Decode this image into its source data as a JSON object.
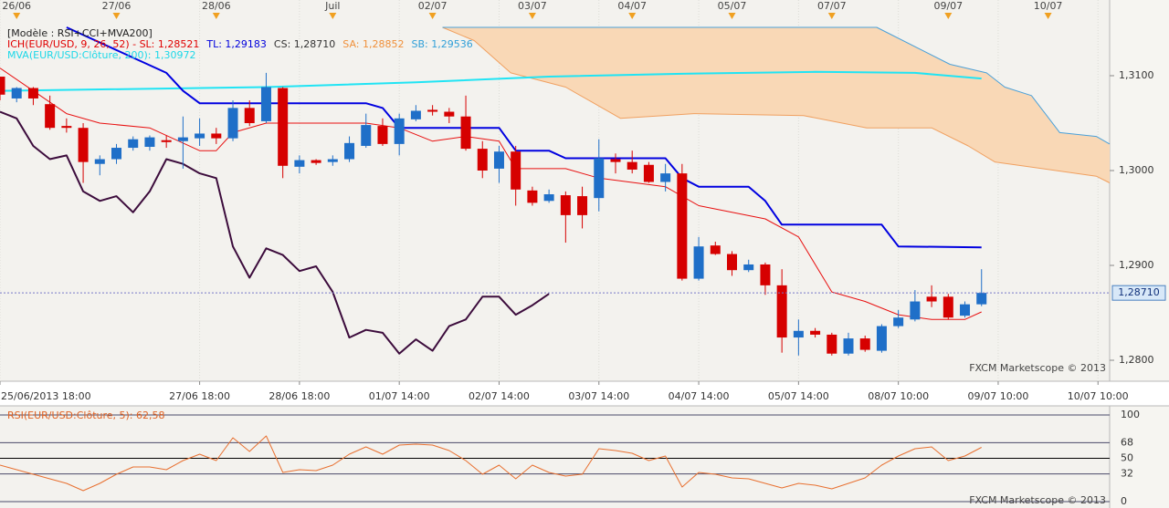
{
  "chart_data": [
    {
      "type": "candlestick",
      "header": [
        [
          {
            "text": "[Modèle : RSI+CCI+MVA200]",
            "color": "#222222"
          }
        ],
        [
          {
            "text": "ICH(EUR/USD, 9, 26, 52) -  SL: 1,28521",
            "color": "#e00000"
          },
          {
            "text": "TL: 1,29183",
            "color": "#0000dd"
          },
          {
            "text": "CS: 1,28710",
            "color": "#333333"
          },
          {
            "text": "SA: 1,28852",
            "color": "#f0903a"
          },
          {
            "text": "SB: 1,29536",
            "color": "#2f9fd8"
          }
        ],
        [
          {
            "text": "MVA(EUR/USD:Clôture, 200): 1,30972",
            "color": "#1cd8e8"
          }
        ]
      ],
      "watermark": "FXCM Marketscope © 2013",
      "xlim": [
        0,
        66.7
      ],
      "xticks": [
        {
          "value": 0,
          "label": "25/06/2013 18:00"
        },
        {
          "value": 12,
          "label": "27/06 18:00"
        },
        {
          "value": 18,
          "label": "28/06 18:00"
        },
        {
          "value": 24,
          "label": "01/07 14:00"
        },
        {
          "value": 30,
          "label": "02/07 14:00"
        },
        {
          "value": 36,
          "label": "03/07 14:00"
        },
        {
          "value": 42,
          "label": "04/07 14:00"
        },
        {
          "value": 48,
          "label": "05/07 14:00"
        },
        {
          "value": 54,
          "label": "08/07 10:00"
        },
        {
          "value": 60,
          "label": "09/07 10:00"
        },
        {
          "value": 66,
          "label": "10/07 10:00"
        }
      ],
      "x2ticks": [
        {
          "value": 1,
          "label": "26/06"
        },
        {
          "value": 7,
          "label": "27/06"
        },
        {
          "value": 13,
          "label": "28/06"
        },
        {
          "value": 20,
          "label": "Juil"
        },
        {
          "value": 26,
          "label": "02/07"
        },
        {
          "value": 32,
          "label": "03/07"
        },
        {
          "value": 38,
          "label": "04/07"
        },
        {
          "value": 44,
          "label": "05/07"
        },
        {
          "value": 50,
          "label": "07/07"
        },
        {
          "value": 57,
          "label": "09/07"
        },
        {
          "value": 63,
          "label": "10/07"
        }
      ],
      "ylim": [
        1.27779,
        1.31798
      ],
      "yticks": [
        {
          "value": 1.31,
          "label": "1,3100"
        },
        {
          "value": 1.3,
          "label": "1,3000"
        },
        {
          "value": 1.29,
          "label": "1,2900"
        },
        {
          "value": 1.28,
          "label": "1,2800"
        }
      ],
      "grid": true,
      "up_color": "#1f6fc8",
      "down_color": "#d60000",
      "last_price": {
        "value": 1.2871,
        "label": "1,28710"
      },
      "x": [
        0,
        1,
        2,
        3,
        4,
        5,
        6,
        7,
        8,
        9,
        10,
        11,
        12,
        13,
        14,
        15,
        16,
        17,
        18,
        19,
        20,
        21,
        22,
        23,
        24,
        25,
        26,
        27,
        28,
        29,
        30,
        31,
        32,
        33,
        34,
        35,
        36,
        37,
        38,
        39,
        40,
        41,
        42,
        43,
        44,
        45,
        46,
        47,
        48,
        49,
        50,
        51,
        52,
        53,
        54,
        55,
        56,
        57,
        58,
        59
      ],
      "open": [
        1.3099,
        1.3076,
        1.3087,
        1.307,
        1.3047,
        1.3045,
        1.3007,
        1.3012,
        1.3024,
        1.3025,
        1.3032,
        1.3031,
        1.3034,
        1.3039,
        1.3034,
        1.3066,
        1.3052,
        1.3087,
        1.3004,
        1.3011,
        1.3009,
        1.3012,
        1.3026,
        1.3047,
        1.3028,
        1.3054,
        1.3064,
        1.3062,
        1.3057,
        1.3023,
        1.3002,
        1.302,
        1.2979,
        1.2968,
        1.2974,
        1.2973,
        1.2971,
        1.3012,
        1.3009,
        1.3006,
        1.2988,
        1.2997,
        1.2886,
        1.2921,
        1.2912,
        1.2895,
        1.2901,
        1.2879,
        1.2824,
        1.2831,
        1.2827,
        1.2807,
        1.2823,
        1.281,
        1.2836,
        1.2843,
        1.2867,
        1.2867,
        1.2847,
        1.2859
      ],
      "high": [
        1.3099,
        1.3088,
        1.3088,
        1.3079,
        1.3055,
        1.305,
        1.3016,
        1.3028,
        1.3036,
        1.3037,
        1.3037,
        1.3057,
        1.3055,
        1.3045,
        1.3074,
        1.3074,
        1.3103,
        1.3088,
        1.3016,
        1.3012,
        1.3016,
        1.3036,
        1.306,
        1.3055,
        1.306,
        1.3069,
        1.3069,
        1.3066,
        1.3079,
        1.3031,
        1.3026,
        1.3026,
        1.2983,
        1.298,
        1.2978,
        1.2983,
        1.3033,
        1.3018,
        1.3021,
        1.3009,
        1.3007,
        1.3007,
        1.293,
        1.2925,
        1.2915,
        1.2906,
        1.2903,
        1.2896,
        1.2843,
        1.2834,
        1.2829,
        1.2829,
        1.2826,
        1.2838,
        1.2853,
        1.2874,
        1.2879,
        1.287,
        1.2862,
        1.2896
      ],
      "low": [
        1.3074,
        1.3072,
        1.3069,
        1.3043,
        1.304,
        1.2987,
        1.2995,
        1.3007,
        1.3021,
        1.3021,
        1.3024,
        1.3002,
        1.3026,
        1.3028,
        1.3031,
        1.3047,
        1.305,
        1.2992,
        1.2997,
        1.3006,
        1.3005,
        1.3009,
        1.3024,
        1.3026,
        1.3016,
        1.3052,
        1.3058,
        1.305,
        1.3021,
        1.2992,
        1.2987,
        1.2963,
        1.2963,
        1.2966,
        1.2924,
        1.2939,
        1.2957,
        1.2997,
        1.2997,
        1.2987,
        1.2978,
        1.2884,
        1.2884,
        1.2911,
        1.2889,
        1.2893,
        1.2869,
        1.2808,
        1.2805,
        1.2824,
        1.2805,
        1.2805,
        1.2809,
        1.2808,
        1.2834,
        1.2841,
        1.2856,
        1.2843,
        1.2845,
        1.2857
      ],
      "close": [
        1.308,
        1.3087,
        1.3076,
        1.3045,
        1.3045,
        1.3009,
        1.3012,
        1.3024,
        1.3033,
        1.3035,
        1.303,
        1.3035,
        1.3039,
        1.3034,
        1.3066,
        1.305,
        1.3088,
        1.3005,
        1.3011,
        1.3008,
        1.3012,
        1.3029,
        1.3048,
        1.3028,
        1.3055,
        1.3063,
        1.3062,
        1.3057,
        1.3023,
        1.3,
        1.302,
        1.298,
        1.2966,
        1.2975,
        1.2953,
        1.2953,
        1.3013,
        1.3009,
        1.3001,
        1.2988,
        1.2997,
        1.2886,
        1.292,
        1.2912,
        1.2895,
        1.2901,
        1.2879,
        1.2824,
        1.2831,
        1.2827,
        1.2807,
        1.2823,
        1.2811,
        1.2836,
        1.2845,
        1.2862,
        1.2862,
        1.2845,
        1.2859,
        1.2871
      ],
      "cloud_fill": "#f9d8b6",
      "cloud": [
        {
          "color": "#f0a060",
          "x": [
            26.6,
            28.5,
            30.7,
            34,
            37.3,
            41.7,
            48.3,
            52.1,
            56,
            58.2,
            59.8,
            65.9,
            66.7
          ],
          "values": [
            1.3151,
            1.3137,
            1.3103,
            1.3088,
            1.3055,
            1.306,
            1.3058,
            1.3045,
            1.3045,
            1.3026,
            1.3009,
            1.2994,
            1.2987
          ]
        },
        {
          "color": "#4aa0d8",
          "x": [
            26.6,
            52.7,
            57.1,
            59.3,
            60.4,
            62,
            63.7,
            65.9,
            66.7
          ],
          "values": [
            1.3151,
            1.3151,
            1.3112,
            1.3103,
            1.3088,
            1.3079,
            1.304,
            1.3036,
            1.3028
          ]
        }
      ],
      "series": [
        {
          "color": "#20e4f4",
          "width": 2,
          "x": [
            0,
            16,
            25,
            33,
            41,
            49,
            55,
            59
          ],
          "values": [
            1.3084,
            1.3088,
            1.3093,
            1.3099,
            1.3102,
            1.3104,
            1.3103,
            1.3097
          ]
        },
        {
          "color": "#e81010",
          "width": 1,
          "x": [
            0,
            2,
            4,
            6,
            9,
            12,
            13,
            14,
            16,
            22,
            24,
            26,
            28,
            30,
            31,
            34,
            36,
            40,
            42,
            46,
            48,
            50,
            52,
            54,
            56,
            58,
            59
          ],
          "values": [
            1.3108,
            1.3084,
            1.306,
            1.305,
            1.3045,
            1.3021,
            1.3021,
            1.304,
            1.305,
            1.305,
            1.3045,
            1.3031,
            1.3036,
            1.3031,
            1.3002,
            1.3002,
            1.2992,
            1.2983,
            1.2963,
            1.2949,
            1.293,
            1.2872,
            1.2862,
            1.2848,
            1.2843,
            1.2843,
            1.2851
          ]
        },
        {
          "color": "#0000e0",
          "width": 2,
          "x": [
            4,
            10,
            11,
            12,
            22,
            23,
            24,
            30,
            31,
            33,
            34,
            40,
            41,
            42,
            45,
            46,
            47,
            53,
            54,
            59
          ],
          "values": [
            1.3151,
            1.3103,
            1.3084,
            1.3071,
            1.3071,
            1.3066,
            1.3045,
            1.3045,
            1.3021,
            1.3021,
            1.3013,
            1.3013,
            1.2992,
            1.2983,
            1.2983,
            1.2968,
            1.2943,
            1.2943,
            1.292,
            1.2919
          ]
        },
        {
          "color": "#3c0c3c",
          "width": 2,
          "x": [
            0,
            1,
            2,
            3,
            4,
            5,
            6,
            7,
            8,
            9,
            10,
            11,
            12,
            13,
            14,
            15,
            16,
            17,
            18,
            19,
            20,
            21,
            22,
            23,
            24,
            25,
            26,
            27,
            28,
            29,
            30,
            31,
            32,
            33
          ],
          "values": [
            1.3062,
            1.3055,
            1.3026,
            1.3012,
            1.3016,
            1.2978,
            1.2968,
            1.2973,
            1.2956,
            1.2978,
            1.3012,
            1.3007,
            1.2997,
            1.2992,
            1.292,
            1.2887,
            1.2918,
            1.2911,
            1.2894,
            1.2899,
            1.2872,
            1.2824,
            1.2832,
            1.2829,
            1.2807,
            1.2822,
            1.281,
            1.2836,
            1.2843,
            1.2867,
            1.2867,
            1.2848,
            1.2858,
            1.287
          ]
        }
      ]
    },
    {
      "type": "line",
      "title": "RSI(EUR/USD:Clôture, 5): 62,58",
      "title_color": "#e06020",
      "watermark": "FXCM Marketscope © 2013",
      "xlim": [
        0,
        66.7
      ],
      "ylim": [
        -7.37,
        110.53
      ],
      "yticks": [
        100,
        68,
        50,
        32,
        0
      ],
      "series": [
        {
          "color": "#e87030",
          "x": [
            0,
            1,
            2,
            3,
            4,
            5,
            6,
            7,
            8,
            9,
            10,
            11,
            12,
            13,
            14,
            15,
            16,
            17,
            18,
            19,
            20,
            21,
            22,
            23,
            24,
            25,
            26,
            27,
            28,
            29,
            30,
            31,
            32,
            33,
            34,
            35,
            36,
            37,
            38,
            39,
            40,
            41,
            42,
            43,
            44,
            45,
            46,
            47,
            48,
            49,
            50,
            51,
            52,
            53,
            54,
            55,
            56,
            57,
            58,
            59
          ],
          "values": [
            42.1,
            36.8,
            31.6,
            26.3,
            21.1,
            12.6,
            21.1,
            31.6,
            40.0,
            40.0,
            36.8,
            47.4,
            54.7,
            47.4,
            73.7,
            57.9,
            75.8,
            33.7,
            36.8,
            35.8,
            42.1,
            54.7,
            63.2,
            54.7,
            65.3,
            66.3,
            65.3,
            58.9,
            47.4,
            31.6,
            42.1,
            26.3,
            42.1,
            33.7,
            29.5,
            31.6,
            61.1,
            58.9,
            55.8,
            47.4,
            52.6,
            16.8,
            33.7,
            31.6,
            27.4,
            26.3,
            21.1,
            15.8,
            21.1,
            18.9,
            14.7,
            21.1,
            27.4,
            42.1,
            52.6,
            61.1,
            63.2,
            47.4,
            52.6,
            62.6
          ]
        }
      ]
    }
  ]
}
